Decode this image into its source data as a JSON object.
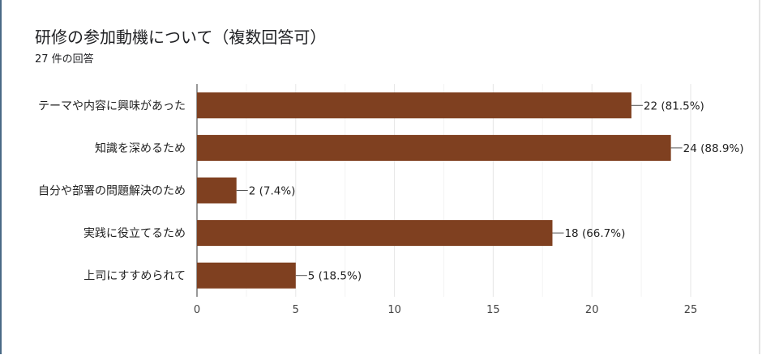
{
  "header": {
    "title": "研修の参加動機について（複数回答可）",
    "response_count": "27 件の回答"
  },
  "chart_data": {
    "type": "bar",
    "orientation": "horizontal",
    "categories": [
      "テーマや内容に興味があった",
      "知識を深めるため",
      "自分や部署の問題解決のため",
      "実践に役立てるため",
      "上司にすすめられて"
    ],
    "values": [
      22,
      24,
      2,
      18,
      5
    ],
    "data_labels": [
      "22 (81.5%)",
      "24 (88.9%)",
      "2 (7.4%)",
      "18 (66.7%)",
      "5 (18.5%)"
    ],
    "xlim": [
      0,
      25
    ],
    "xticks": [
      "0",
      "5",
      "10",
      "15",
      "20",
      "25"
    ],
    "grid": true,
    "bar_color": "#7f4020"
  }
}
